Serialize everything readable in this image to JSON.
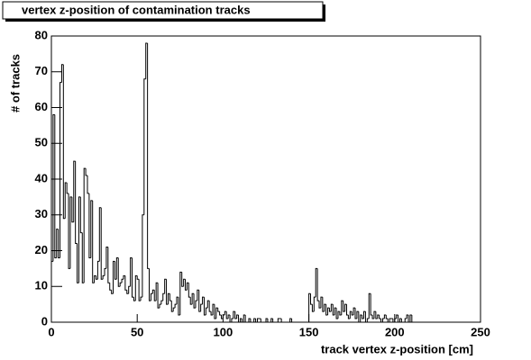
{
  "chart_data": {
    "type": "histogram",
    "title": "vertex z-position of contamination tracks",
    "x_label": "track vertex z-position [cm]",
    "y_label": "# of tracks",
    "color": "#000000",
    "xlim": [
      0,
      250
    ],
    "ylim": [
      0,
      80
    ],
    "xticks": [
      0,
      50,
      100,
      150,
      200,
      250
    ],
    "yticks": [
      0,
      10,
      20,
      30,
      40,
      50,
      60,
      70,
      80
    ],
    "bins": [
      0,
      1,
      2,
      3,
      4,
      5,
      6,
      7,
      8,
      9,
      10,
      11,
      12,
      13,
      14,
      15,
      16,
      17,
      18,
      19,
      20,
      21,
      22,
      23,
      24,
      25,
      26,
      27,
      28,
      29,
      30,
      31,
      32,
      33,
      34,
      35,
      36,
      37,
      38,
      39,
      40,
      41,
      42,
      43,
      44,
      45,
      46,
      47,
      48,
      49,
      50,
      51,
      52,
      53,
      54,
      55,
      56,
      57,
      58,
      59,
      60,
      61,
      62,
      63,
      64,
      65,
      66,
      67,
      68,
      69,
      70,
      71,
      72,
      73,
      74,
      75,
      76,
      77,
      78,
      79,
      80,
      81,
      82,
      83,
      84,
      85,
      86,
      87,
      88,
      89,
      90,
      91,
      92,
      93,
      94,
      95,
      96,
      97,
      98,
      99,
      100,
      101,
      102,
      103,
      104,
      105,
      106,
      107,
      108,
      109,
      110,
      111,
      112,
      113,
      114,
      115,
      116,
      117,
      118,
      119,
      120,
      121,
      122,
      123,
      124,
      125,
      126,
      127,
      128,
      129,
      130,
      131,
      132,
      133,
      134,
      135,
      136,
      137,
      138,
      139,
      140,
      141,
      142,
      143,
      144,
      145,
      146,
      147,
      148,
      149,
      150,
      151,
      152,
      153,
      154,
      155,
      156,
      157,
      158,
      159,
      160,
      161,
      162,
      163,
      164,
      165,
      166,
      167,
      168,
      169,
      170,
      171,
      172,
      173,
      174,
      175,
      176,
      177,
      178,
      179,
      180,
      181,
      182,
      183,
      184,
      185,
      186,
      187,
      188,
      189,
      190,
      191,
      192,
      193,
      194,
      195,
      196,
      197,
      198,
      199,
      200,
      201,
      202,
      203,
      204,
      205,
      206,
      207,
      208,
      209,
      210,
      211,
      212,
      213,
      214,
      215,
      216,
      217,
      218,
      219,
      220,
      221,
      222,
      223,
      224,
      225,
      226,
      227,
      228,
      229,
      230,
      231,
      232,
      233,
      234,
      235,
      236,
      237,
      238,
      239,
      240,
      241,
      242,
      243,
      244,
      245,
      246,
      247,
      248,
      249,
      250
    ],
    "values": [
      17,
      58,
      18,
      26,
      18,
      67,
      72,
      29,
      39,
      36,
      15,
      35,
      28,
      45,
      22,
      11,
      35,
      25,
      11,
      43,
      41,
      36,
      18,
      34,
      11,
      13,
      12,
      17,
      32,
      12,
      13,
      15,
      21,
      11,
      9,
      8,
      17,
      12,
      18,
      10,
      11,
      12,
      13,
      9,
      8,
      10,
      18,
      7,
      6,
      13,
      12,
      6,
      7,
      30,
      68,
      78,
      15,
      6,
      8,
      9,
      6,
      11,
      4,
      5,
      6,
      8,
      12,
      5,
      8,
      6,
      3,
      4,
      5,
      7,
      2,
      14,
      10,
      12,
      9,
      11,
      7,
      5,
      8,
      4,
      6,
      9,
      3,
      5,
      7,
      2,
      4,
      6,
      3,
      2,
      5,
      1,
      4,
      3,
      2,
      1,
      2,
      3,
      1,
      2,
      0,
      1,
      3,
      1,
      2,
      0,
      1,
      0,
      2,
      0,
      0,
      1,
      0,
      0,
      1,
      0,
      1,
      1,
      0,
      0,
      0,
      1,
      0,
      0,
      1,
      0,
      0,
      0,
      1,
      1,
      0,
      0,
      0,
      0,
      0,
      1,
      0,
      0,
      0,
      0,
      0,
      0,
      0,
      0,
      0,
      0,
      8,
      5,
      3,
      7,
      15,
      6,
      4,
      7,
      3,
      5,
      2,
      4,
      3,
      5,
      2,
      4,
      1,
      3,
      2,
      6,
      3,
      5,
      2,
      1,
      3,
      2,
      4,
      1,
      3,
      0,
      2,
      1,
      3,
      0,
      1,
      8,
      2,
      1,
      3,
      1,
      2,
      1,
      0,
      1,
      2,
      1,
      0,
      1,
      1,
      0,
      1,
      2,
      0,
      1,
      0,
      0,
      1,
      2,
      0,
      2,
      0,
      0,
      0,
      0,
      0,
      0,
      0,
      0,
      0,
      0,
      0,
      0,
      0,
      0,
      0,
      0,
      0,
      0,
      0,
      0,
      0,
      0,
      0,
      0,
      0,
      0,
      0,
      0,
      0,
      0,
      0,
      0,
      0,
      0,
      0,
      0,
      0,
      0,
      0,
      0
    ]
  }
}
